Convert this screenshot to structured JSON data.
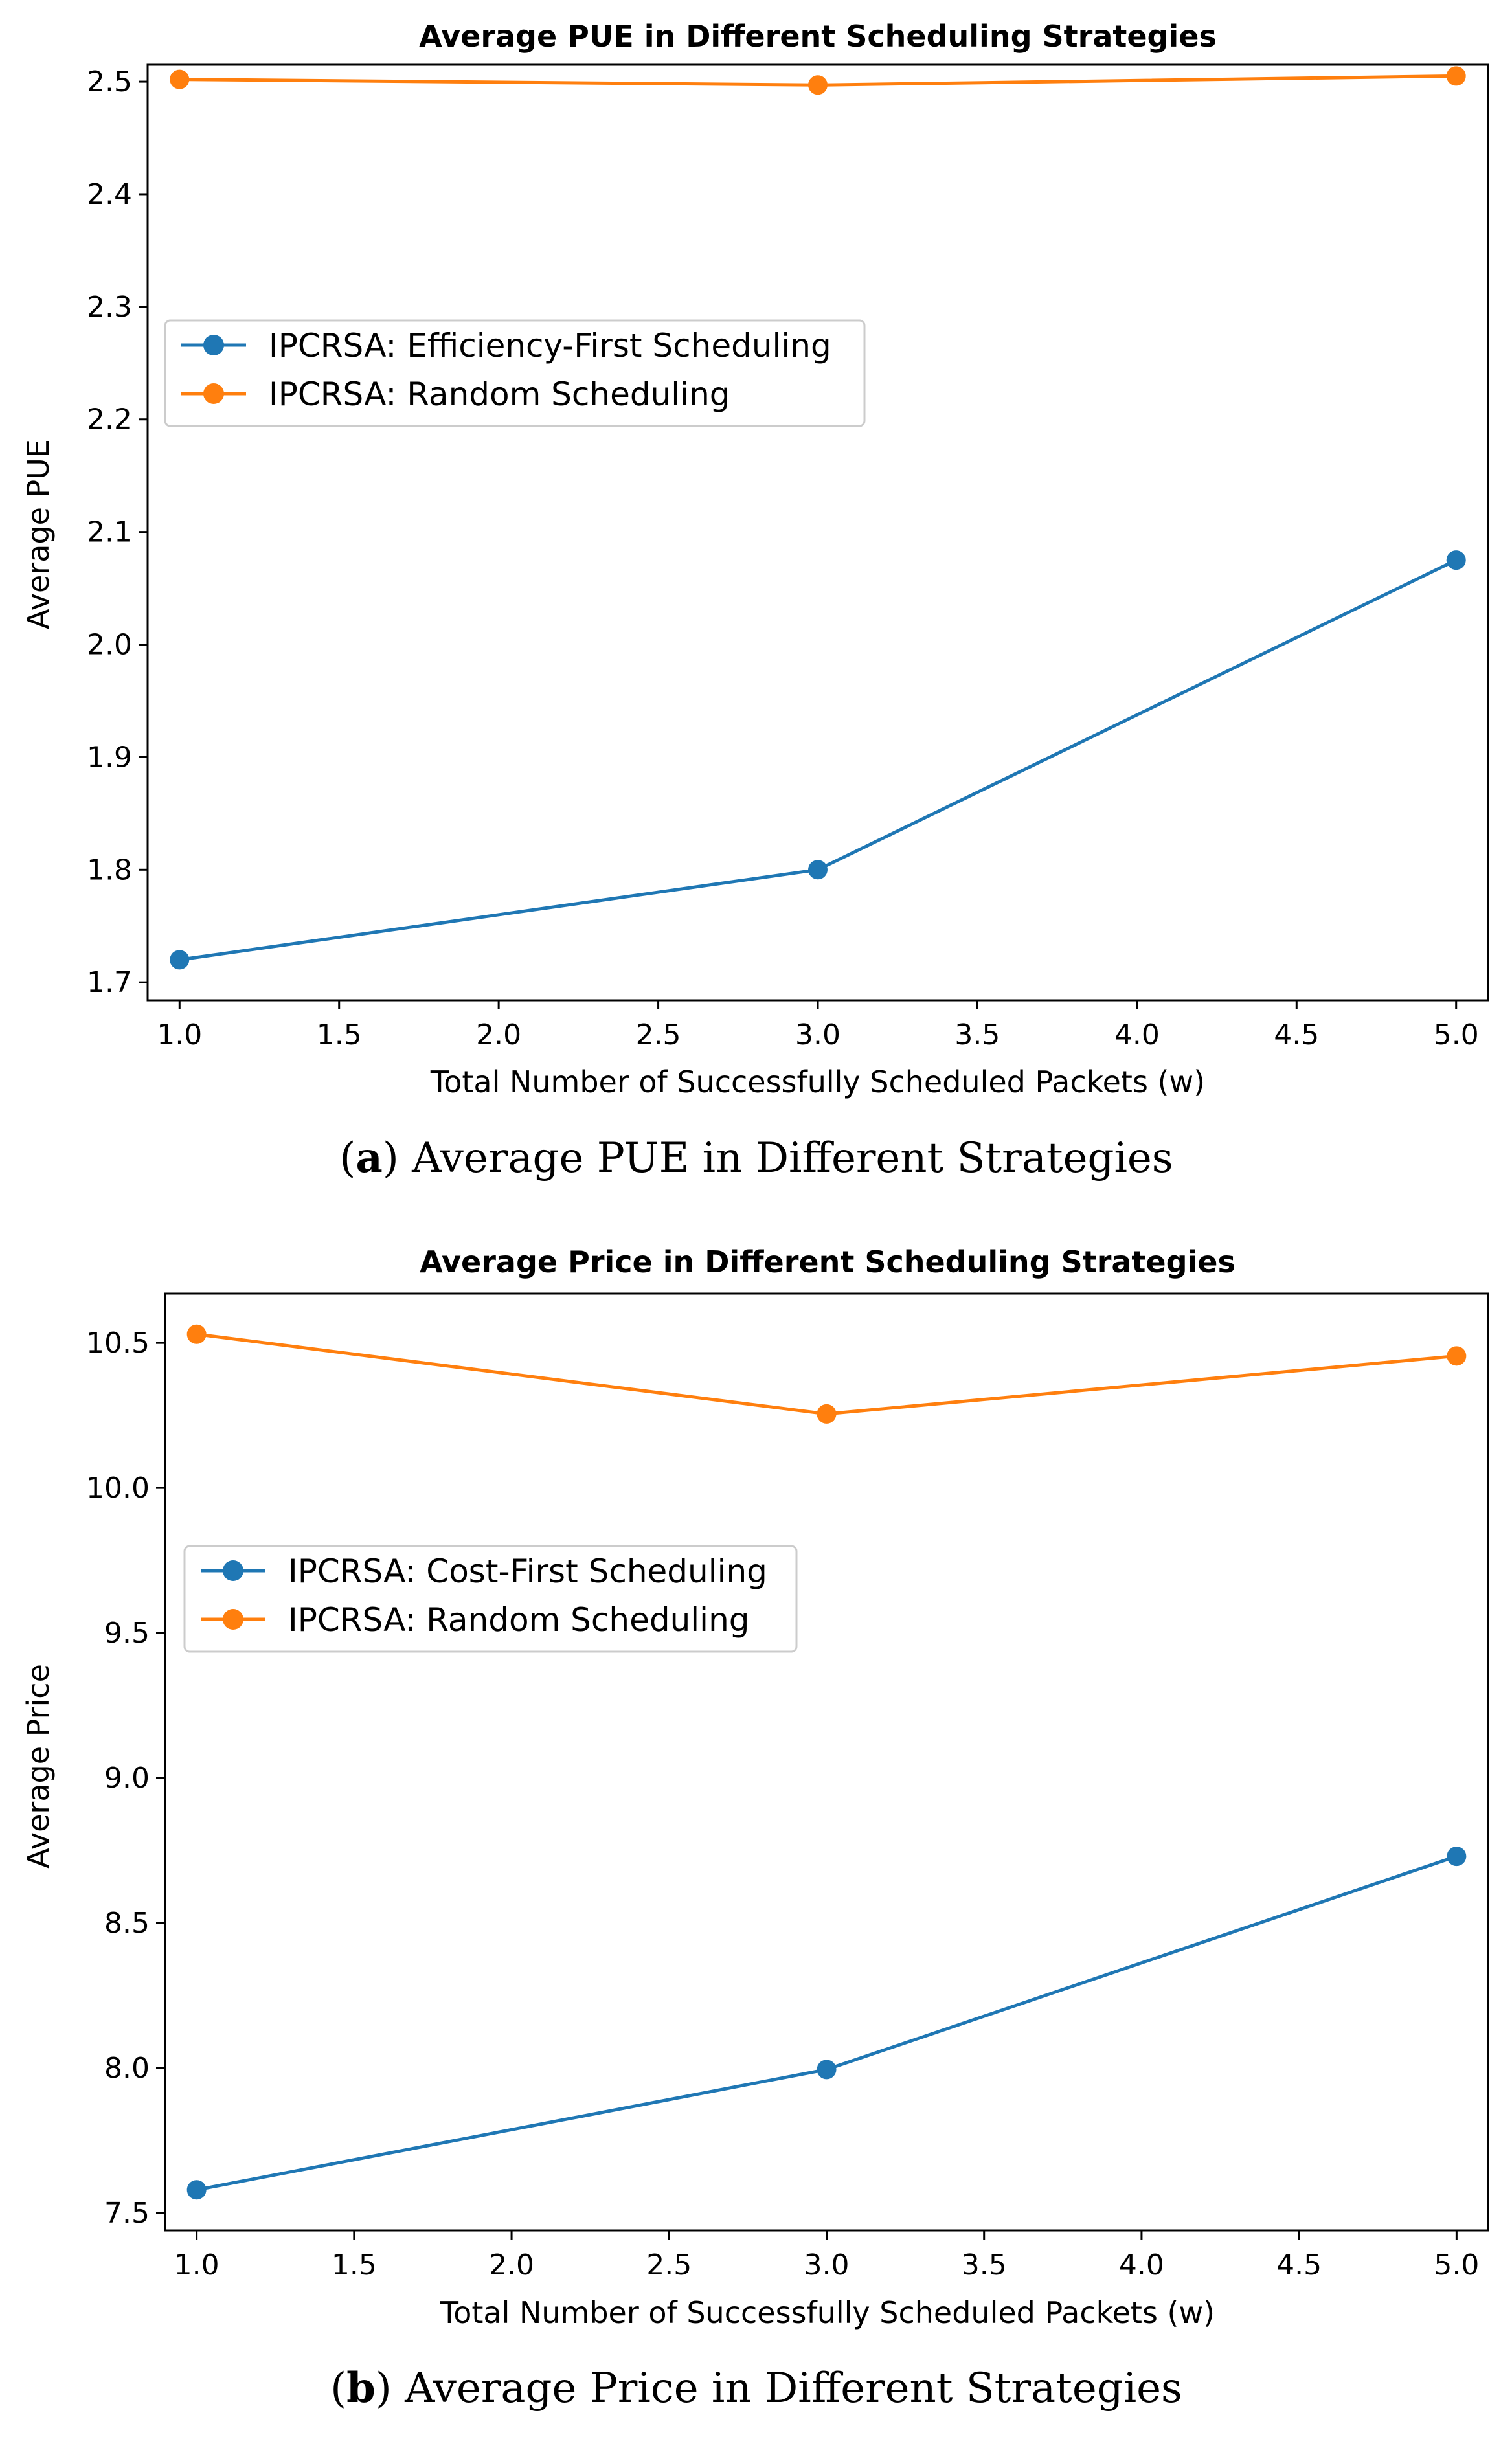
{
  "chart_data": [
    {
      "type": "line",
      "title": "Average PUE in Different Scheduling Strategies",
      "xlabel": "Total Number of Successfully Scheduled Packets (w)",
      "ylabel": "Average PUE",
      "x": [
        1.0,
        3.0,
        5.0
      ],
      "xlim": [
        0.9,
        5.1
      ],
      "ylim": [
        1.684,
        2.515
      ],
      "xticks": [
        "1.0",
        "1.5",
        "2.0",
        "2.5",
        "3.0",
        "3.5",
        "4.0",
        "4.5",
        "5.0"
      ],
      "yticks": [
        "1.7",
        "1.8",
        "1.9",
        "2.0",
        "2.1",
        "2.2",
        "2.3",
        "2.4",
        "2.5"
      ],
      "series": [
        {
          "name": "IPCRSA: Efficiency-First Scheduling",
          "color": "#1f77b4",
          "values": [
            1.72,
            1.8,
            2.075
          ]
        },
        {
          "name": "IPCRSA: Random Scheduling",
          "color": "#ff7f0e",
          "values": [
            2.502,
            2.497,
            2.505
          ]
        }
      ],
      "legend": "center-left",
      "caption_letter": "a",
      "caption_text": "Average PUE in Different Strategies"
    },
    {
      "type": "line",
      "title": "Average Price in Different Scheduling Strategies",
      "xlabel": "Total Number of Successfully Scheduled Packets (w)",
      "ylabel": "Average Price",
      "x": [
        1.0,
        3.0,
        5.0
      ],
      "xlim": [
        0.9,
        5.1
      ],
      "ylim": [
        7.44,
        10.67
      ],
      "xticks": [
        "1.0",
        "1.5",
        "2.0",
        "2.5",
        "3.0",
        "3.5",
        "4.0",
        "4.5",
        "5.0"
      ],
      "yticks": [
        "7.5",
        "8.0",
        "8.5",
        "9.0",
        "9.5",
        "10.0",
        "10.5"
      ],
      "series": [
        {
          "name": "IPCRSA: Cost-First Scheduling",
          "color": "#1f77b4",
          "values": [
            7.58,
            7.995,
            8.73
          ]
        },
        {
          "name": "IPCRSA: Random Scheduling",
          "color": "#ff7f0e",
          "values": [
            10.53,
            10.255,
            10.455
          ]
        }
      ],
      "legend": "center-left",
      "caption_letter": "b",
      "caption_text": "Average Price in Different Strategies"
    }
  ]
}
